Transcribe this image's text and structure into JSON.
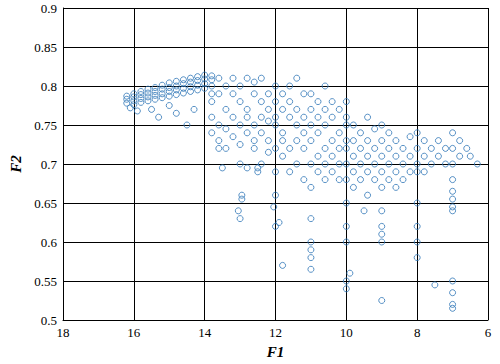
{
  "chart_data": {
    "type": "scatter",
    "x_label": "F1",
    "y_label": "F2",
    "color": "#2e75b6",
    "marker": "circle_open",
    "grid": true,
    "xlim": [
      18,
      6
    ],
    "xticks": [
      18,
      16,
      14,
      12,
      10,
      8,
      6
    ],
    "ylim": [
      0.5,
      0.9
    ],
    "yticks": [
      0.5,
      0.55,
      0.6,
      0.65,
      0.7,
      0.75,
      0.8,
      0.85,
      0.9
    ],
    "x": [
      16.2,
      16.2,
      16.2,
      16.0,
      16.0,
      16.0,
      16.0,
      15.8,
      15.8,
      15.8,
      15.8,
      15.6,
      15.6,
      15.6,
      15.6,
      15.4,
      15.4,
      15.4,
      15.4,
      15.2,
      15.2,
      15.2,
      15.2,
      15.0,
      15.0,
      15.0,
      15.0,
      14.8,
      14.8,
      14.8,
      14.8,
      14.6,
      14.6,
      14.6,
      14.6,
      14.4,
      14.4,
      14.4,
      14.4,
      14.2,
      14.2,
      14.2,
      14.2,
      14.0,
      14.0,
      14.0,
      14.0,
      13.8,
      13.8,
      13.8,
      13.8,
      16.1,
      15.9,
      15.5,
      15.3,
      15.0,
      14.8,
      14.5,
      14.3,
      13.8,
      13.8,
      13.8,
      13.6,
      13.6,
      13.6,
      13.6,
      13.4,
      13.4,
      13.4,
      13.4,
      13.2,
      13.2,
      13.2,
      13.2,
      13.0,
      13.0,
      13.0,
      13.0,
      13.0,
      12.8,
      12.8,
      12.8,
      12.8,
      12.8,
      12.6,
      12.6,
      12.6,
      12.6,
      12.6,
      12.4,
      12.4,
      12.4,
      12.4,
      12.4,
      12.2,
      12.2,
      12.2,
      12.2,
      12.2,
      12.0,
      12.0,
      12.0,
      12.0,
      12.0,
      12.0,
      13.0,
      12.95,
      12.95,
      13.05,
      12.5,
      12.5,
      13.5,
      13.6,
      11.9,
      12.0,
      12.05,
      12.0,
      11.8,
      11.8,
      11.8,
      11.8,
      11.8,
      11.6,
      11.6,
      11.6,
      11.6,
      11.6,
      11.4,
      11.4,
      11.4,
      11.4,
      11.4,
      11.2,
      11.2,
      11.2,
      11.2,
      11.2,
      11.0,
      11.0,
      11.0,
      11.0,
      11.0,
      11.0,
      11.0,
      11.0,
      11.0,
      11.0,
      11.0,
      10.8,
      10.8,
      10.8,
      10.8,
      10.8,
      10.6,
      10.6,
      10.6,
      10.6,
      10.6,
      10.6,
      10.4,
      10.4,
      10.4,
      10.4,
      10.4,
      10.2,
      10.2,
      10.2,
      10.2,
      10.2,
      10.0,
      10.0,
      10.0,
      10.0,
      10.0,
      10.0,
      10.0,
      10.0,
      10.0,
      10.0,
      10.0,
      10.0,
      9.8,
      9.8,
      9.8,
      9.8,
      9.8,
      9.6,
      9.6,
      9.6,
      9.6,
      9.4,
      9.4,
      9.4,
      9.4,
      9.4,
      9.2,
      9.2,
      9.2,
      9.2,
      9.0,
      9.0,
      9.0,
      9.0,
      9.0,
      9.0,
      9.0,
      9.0,
      9.0,
      9.0,
      8.8,
      8.8,
      8.8,
      8.8,
      8.6,
      8.6,
      8.6,
      8.6,
      8.4,
      8.4,
      8.4,
      8.2,
      8.2,
      8.2,
      8.0,
      8.0,
      8.0,
      8.0,
      8.0,
      8.0,
      8.0,
      8.0,
      7.8,
      7.8,
      7.8,
      7.6,
      7.6,
      7.4,
      7.4,
      7.2,
      7.2,
      7.0,
      7.0,
      7.0,
      7.0,
      7.0,
      7.0,
      7.0,
      7.0,
      7.0,
      7.0,
      7.0,
      7.0,
      6.8,
      6.8,
      6.6,
      6.5,
      7.5,
      6.3,
      9.9,
      9.5,
      11.8
    ],
    "values": [
      0.778,
      0.783,
      0.787,
      0.776,
      0.781,
      0.786,
      0.79,
      0.779,
      0.784,
      0.789,
      0.793,
      0.781,
      0.786,
      0.791,
      0.796,
      0.783,
      0.788,
      0.793,
      0.798,
      0.785,
      0.79,
      0.796,
      0.801,
      0.787,
      0.793,
      0.798,
      0.804,
      0.789,
      0.795,
      0.8,
      0.806,
      0.791,
      0.797,
      0.803,
      0.808,
      0.793,
      0.799,
      0.805,
      0.81,
      0.795,
      0.801,
      0.807,
      0.812,
      0.797,
      0.803,
      0.809,
      0.814,
      0.79,
      0.8,
      0.808,
      0.813,
      0.772,
      0.768,
      0.77,
      0.76,
      0.775,
      0.765,
      0.75,
      0.77,
      0.76,
      0.74,
      0.78,
      0.79,
      0.75,
      0.73,
      0.81,
      0.77,
      0.72,
      0.8,
      0.745,
      0.76,
      0.79,
      0.735,
      0.81,
      0.7,
      0.75,
      0.78,
      0.8,
      0.725,
      0.74,
      0.77,
      0.81,
      0.695,
      0.76,
      0.72,
      0.79,
      0.75,
      0.805,
      0.73,
      0.7,
      0.76,
      0.78,
      0.74,
      0.81,
      0.73,
      0.77,
      0.79,
      0.715,
      0.755,
      0.75,
      0.78,
      0.8,
      0.72,
      0.76,
      0.69,
      0.63,
      0.655,
      0.66,
      0.64,
      0.69,
      0.695,
      0.695,
      0.72,
      0.625,
      0.62,
      0.645,
      0.66,
      0.71,
      0.74,
      0.77,
      0.79,
      0.73,
      0.69,
      0.72,
      0.76,
      0.78,
      0.8,
      0.7,
      0.73,
      0.75,
      0.77,
      0.81,
      0.68,
      0.72,
      0.74,
      0.76,
      0.79,
      0.565,
      0.58,
      0.59,
      0.6,
      0.63,
      0.67,
      0.7,
      0.73,
      0.75,
      0.77,
      0.79,
      0.69,
      0.71,
      0.74,
      0.76,
      0.78,
      0.68,
      0.7,
      0.72,
      0.75,
      0.77,
      0.8,
      0.69,
      0.71,
      0.73,
      0.76,
      0.78,
      0.68,
      0.7,
      0.72,
      0.74,
      0.77,
      0.54,
      0.55,
      0.6,
      0.62,
      0.65,
      0.68,
      0.7,
      0.72,
      0.73,
      0.75,
      0.76,
      0.78,
      0.67,
      0.69,
      0.71,
      0.73,
      0.75,
      0.68,
      0.7,
      0.72,
      0.74,
      0.66,
      0.69,
      0.71,
      0.73,
      0.76,
      0.68,
      0.7,
      0.72,
      0.745,
      0.525,
      0.6,
      0.61,
      0.62,
      0.64,
      0.67,
      0.69,
      0.71,
      0.73,
      0.75,
      0.68,
      0.7,
      0.72,
      0.74,
      0.67,
      0.69,
      0.71,
      0.73,
      0.68,
      0.7,
      0.72,
      0.69,
      0.71,
      0.735,
      0.58,
      0.6,
      0.62,
      0.65,
      0.69,
      0.7,
      0.72,
      0.74,
      0.69,
      0.71,
      0.73,
      0.7,
      0.72,
      0.71,
      0.73,
      0.7,
      0.72,
      0.515,
      0.52,
      0.535,
      0.55,
      0.64,
      0.645,
      0.655,
      0.665,
      0.68,
      0.7,
      0.72,
      0.74,
      0.71,
      0.73,
      0.72,
      0.71,
      0.545,
      0.7,
      0.56,
      0.64,
      0.57
    ]
  }
}
